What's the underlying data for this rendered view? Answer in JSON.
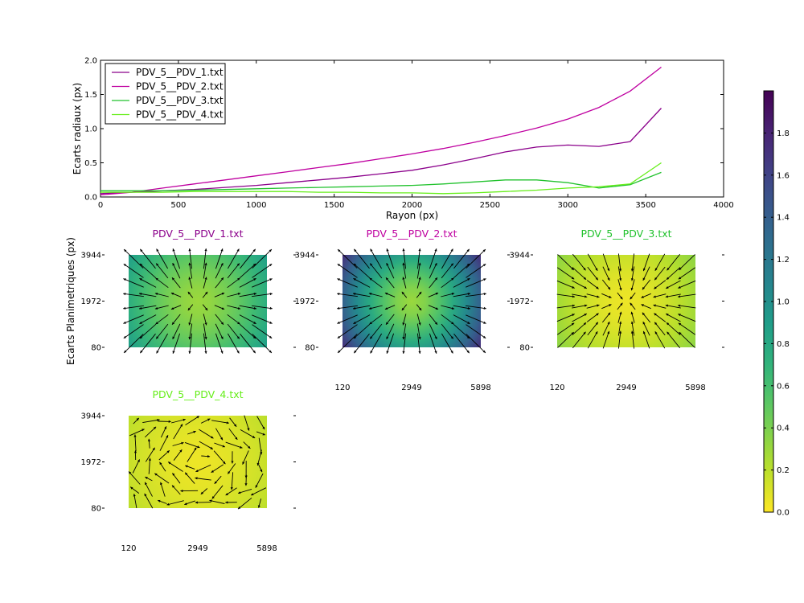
{
  "chart_data": [
    {
      "type": "line",
      "xlabel": "Rayon (px)",
      "ylabel": "Ecarts radiaux (px)",
      "xlim": [
        0,
        4000
      ],
      "ylim": [
        0,
        2.0
      ],
      "xticks": [
        "0",
        "500",
        "1000",
        "1500",
        "2000",
        "2500",
        "3000",
        "3500",
        "4000"
      ],
      "yticks": [
        "0.0",
        "0.5",
        "1.0",
        "1.5",
        "2.0"
      ],
      "grid": false,
      "legend_position": "top-left",
      "series": [
        {
          "name": "PDV_5__PDV_1.txt",
          "color": "#8b008b",
          "x": [
            0,
            200,
            400,
            600,
            800,
            1000,
            1200,
            1400,
            1600,
            1800,
            2000,
            2200,
            2400,
            2600,
            2800,
            3000,
            3200,
            3400,
            3600
          ],
          "y": [
            0.05,
            0.07,
            0.09,
            0.11,
            0.14,
            0.17,
            0.21,
            0.25,
            0.29,
            0.34,
            0.39,
            0.47,
            0.56,
            0.66,
            0.73,
            0.76,
            0.74,
            0.81,
            1.3
          ]
        },
        {
          "name": "PDV_5__PDV_2.txt",
          "color": "#bf00a0",
          "x": [
            0,
            200,
            400,
            600,
            800,
            1000,
            1200,
            1400,
            1600,
            1800,
            2000,
            2200,
            2400,
            2600,
            2800,
            3000,
            3200,
            3400,
            3600
          ],
          "y": [
            0.03,
            0.07,
            0.13,
            0.19,
            0.25,
            0.31,
            0.37,
            0.43,
            0.49,
            0.56,
            0.63,
            0.71,
            0.8,
            0.9,
            1.01,
            1.14,
            1.31,
            1.55,
            1.9
          ]
        },
        {
          "name": "PDV_5__PDV_3.txt",
          "color": "#22c22e",
          "x": [
            0,
            200,
            400,
            600,
            800,
            1000,
            1200,
            1400,
            1600,
            1800,
            2000,
            2200,
            2400,
            2600,
            2800,
            3000,
            3200,
            3400,
            3600
          ],
          "y": [
            0.09,
            0.09,
            0.09,
            0.1,
            0.11,
            0.12,
            0.13,
            0.14,
            0.15,
            0.16,
            0.17,
            0.19,
            0.22,
            0.25,
            0.25,
            0.21,
            0.13,
            0.18,
            0.36
          ]
        },
        {
          "name": "PDV_5__PDV_4.txt",
          "color": "#66ee1a",
          "x": [
            0,
            200,
            400,
            600,
            800,
            1000,
            1200,
            1400,
            1600,
            1800,
            2000,
            2200,
            2400,
            2600,
            2800,
            3000,
            3200,
            3400,
            3600
          ],
          "y": [
            0.07,
            0.07,
            0.07,
            0.08,
            0.08,
            0.08,
            0.08,
            0.07,
            0.07,
            0.06,
            0.06,
            0.05,
            0.06,
            0.08,
            0.1,
            0.13,
            0.15,
            0.19,
            0.5
          ]
        }
      ]
    },
    {
      "type": "heatmap",
      "title": "PDV_5__PDV_1.txt",
      "title_color": "#8b008b",
      "ylabel": "Ecarts Planimetriques (px)",
      "xticks": [
        "120",
        "2949",
        "5898"
      ],
      "yticks": [
        "3944",
        "1972",
        "80"
      ],
      "show_xticks": false,
      "center_value": 0.3,
      "edge_value": 0.9,
      "vector_pattern": "radial-out"
    },
    {
      "type": "heatmap",
      "title": "PDV_5__PDV_2.txt",
      "title_color": "#bf00a0",
      "xticks": [
        "120",
        "2949",
        "5898"
      ],
      "yticks": [
        "3944",
        "1972",
        "80"
      ],
      "show_xticks": true,
      "center_value": 0.3,
      "edge_value": 1.75,
      "vector_pattern": "radial-out"
    },
    {
      "type": "heatmap",
      "title": "PDV_5__PDV_3.txt",
      "title_color": "#22c22e",
      "xticks": [
        "120",
        "2949",
        "5898"
      ],
      "yticks": [
        "3944",
        "1972",
        "80"
      ],
      "show_xticks": true,
      "center_value": 0.05,
      "edge_value": 0.35,
      "vector_pattern": "radial-in"
    },
    {
      "type": "heatmap",
      "title": "PDV_5__PDV_4.txt",
      "title_color": "#66ee1a",
      "xticks": [
        "120",
        "2949",
        "5898"
      ],
      "yticks": [
        "3944",
        "1972",
        "80"
      ],
      "show_xticks": true,
      "center_value": 0.05,
      "edge_value": 0.2,
      "vector_pattern": "swirl"
    }
  ],
  "colorbar": {
    "colormap": "viridis_r",
    "vmin": 0.0,
    "vmax": 2.0,
    "ticks": [
      "0.0",
      "0.2",
      "0.4",
      "0.6",
      "0.8",
      "1.0",
      "1.2",
      "1.4",
      "1.6",
      "1.8"
    ]
  }
}
